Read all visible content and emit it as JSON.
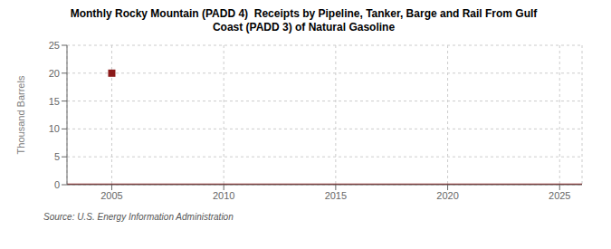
{
  "chart_data": {
    "type": "line",
    "title": "Monthly Rocky Mountain (PADD 4)  Receipts by Pipeline, Tanker, Barge and Rail From Gulf\nCoast (PADD 3) of Natural Gasoline",
    "ylabel": "Thousand Barrels",
    "annotations": [
      "Source: U.S. Energy Information Administration"
    ],
    "series": [
      {
        "type": "line",
        "color": "#8b1a1a",
        "x": [
          2003,
          2026
        ],
        "values": [
          0,
          0
        ]
      },
      {
        "type": "scatter",
        "marker": "square",
        "color": "#8b1a1a",
        "x": [
          2005.0
        ],
        "values": [
          20
        ]
      }
    ],
    "xlim": [
      2003,
      2026
    ],
    "ylim": [
      0,
      25
    ],
    "xticks": [
      2005,
      2010,
      2015,
      2020,
      2025
    ],
    "yticks": [
      0,
      5,
      10,
      15,
      20,
      25
    ],
    "grid": true
  }
}
